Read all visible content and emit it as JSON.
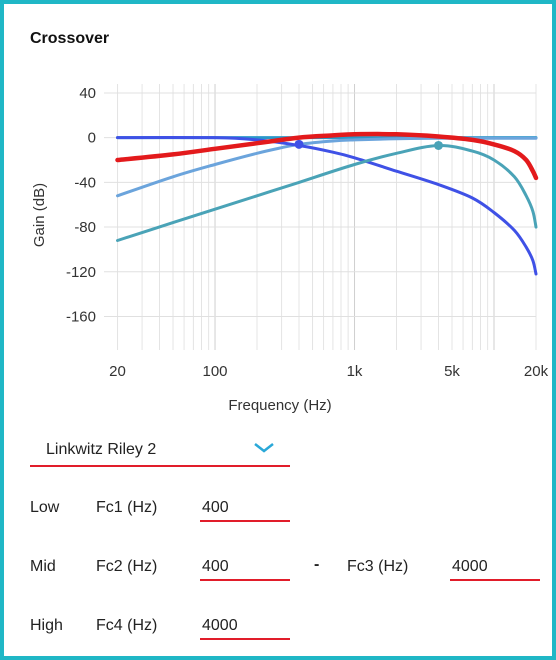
{
  "panel": {
    "title": "Crossover"
  },
  "chart_data": {
    "type": "line",
    "xscale": "log",
    "xlabel": "Frequency (Hz)",
    "ylabel": "Gain (dB)",
    "xlim": [
      16,
      20000
    ],
    "ylim": [
      -190,
      48
    ],
    "x_ticks": [
      {
        "value": 20,
        "label": "20"
      },
      {
        "value": 100,
        "label": "100"
      },
      {
        "value": 1000,
        "label": "1k"
      },
      {
        "value": 5000,
        "label": "5k"
      },
      {
        "value": 20000,
        "label": "20k"
      }
    ],
    "y_ticks": [
      40,
      0,
      -40,
      -80,
      -120,
      -160
    ],
    "grid": true,
    "series": [
      {
        "color": "#2a98c9",
        "x": [
          20,
          100,
          400,
          1000,
          4000,
          10000,
          20000
        ],
        "y": [
          0,
          0,
          0,
          0,
          0,
          0,
          0
        ]
      },
      {
        "color": "#6ba4dc",
        "x": [
          20,
          50,
          100,
          200,
          300,
          400,
          700,
          1000,
          2000,
          4000,
          7000,
          10000,
          15000,
          20000
        ],
        "y": [
          -52,
          -35,
          -24,
          -14,
          -9,
          -6,
          -3,
          -2,
          -1,
          -0.5,
          -0.5,
          -0.5,
          -0.5,
          -0.5
        ]
      },
      {
        "color": "#3f51e6",
        "x": [
          20,
          100,
          200,
          400,
          700,
          1000,
          2000,
          4000,
          7000,
          10000,
          14000,
          17000,
          19000,
          20000
        ],
        "y": [
          0,
          0,
          -2,
          -7,
          -13,
          -18,
          -30,
          -42,
          -54,
          -67,
          -83,
          -98,
          -110,
          -122
        ]
      },
      {
        "color": "#4aa3b7",
        "x": [
          20,
          50,
          100,
          200,
          400,
          1000,
          2000,
          4000,
          7000,
          10000,
          14000,
          17000,
          19000,
          20000
        ],
        "y": [
          -92,
          -76,
          -64,
          -52,
          -40,
          -24,
          -14,
          -7,
          -12,
          -20,
          -35,
          -52,
          -66,
          -80
        ]
      },
      {
        "color": "#e31a1c",
        "x": [
          20,
          50,
          100,
          200,
          400,
          700,
          1000,
          2000,
          4000,
          7000,
          10000,
          14000,
          17000,
          19000,
          20000
        ],
        "y": [
          -20,
          -15,
          -10,
          -5,
          0,
          2,
          3,
          3,
          1,
          -2,
          -6,
          -12,
          -20,
          -30,
          -36
        ]
      }
    ],
    "markers": [
      {
        "x": 400,
        "y": -6,
        "color": "#3f51e6"
      },
      {
        "x": 4000,
        "y": -7,
        "color": "#4aa3b7"
      }
    ]
  },
  "filter": {
    "selected": "Linkwitz Riley 2"
  },
  "bands": {
    "low": {
      "label": "Low",
      "fc_label": "Fc1 (Hz)",
      "value": "400"
    },
    "mid": {
      "label": "Mid",
      "fc_label": "Fc2 (Hz)",
      "value": "400",
      "separator": "-",
      "fc2_label": "Fc3 (Hz)",
      "value2": "4000"
    },
    "high": {
      "label": "High",
      "fc_label": "Fc4 (Hz)",
      "value": "4000"
    }
  },
  "colors": {
    "border": "#1fb7c6",
    "accent": "#e11d2a",
    "chevron": "#2aa8d8"
  }
}
